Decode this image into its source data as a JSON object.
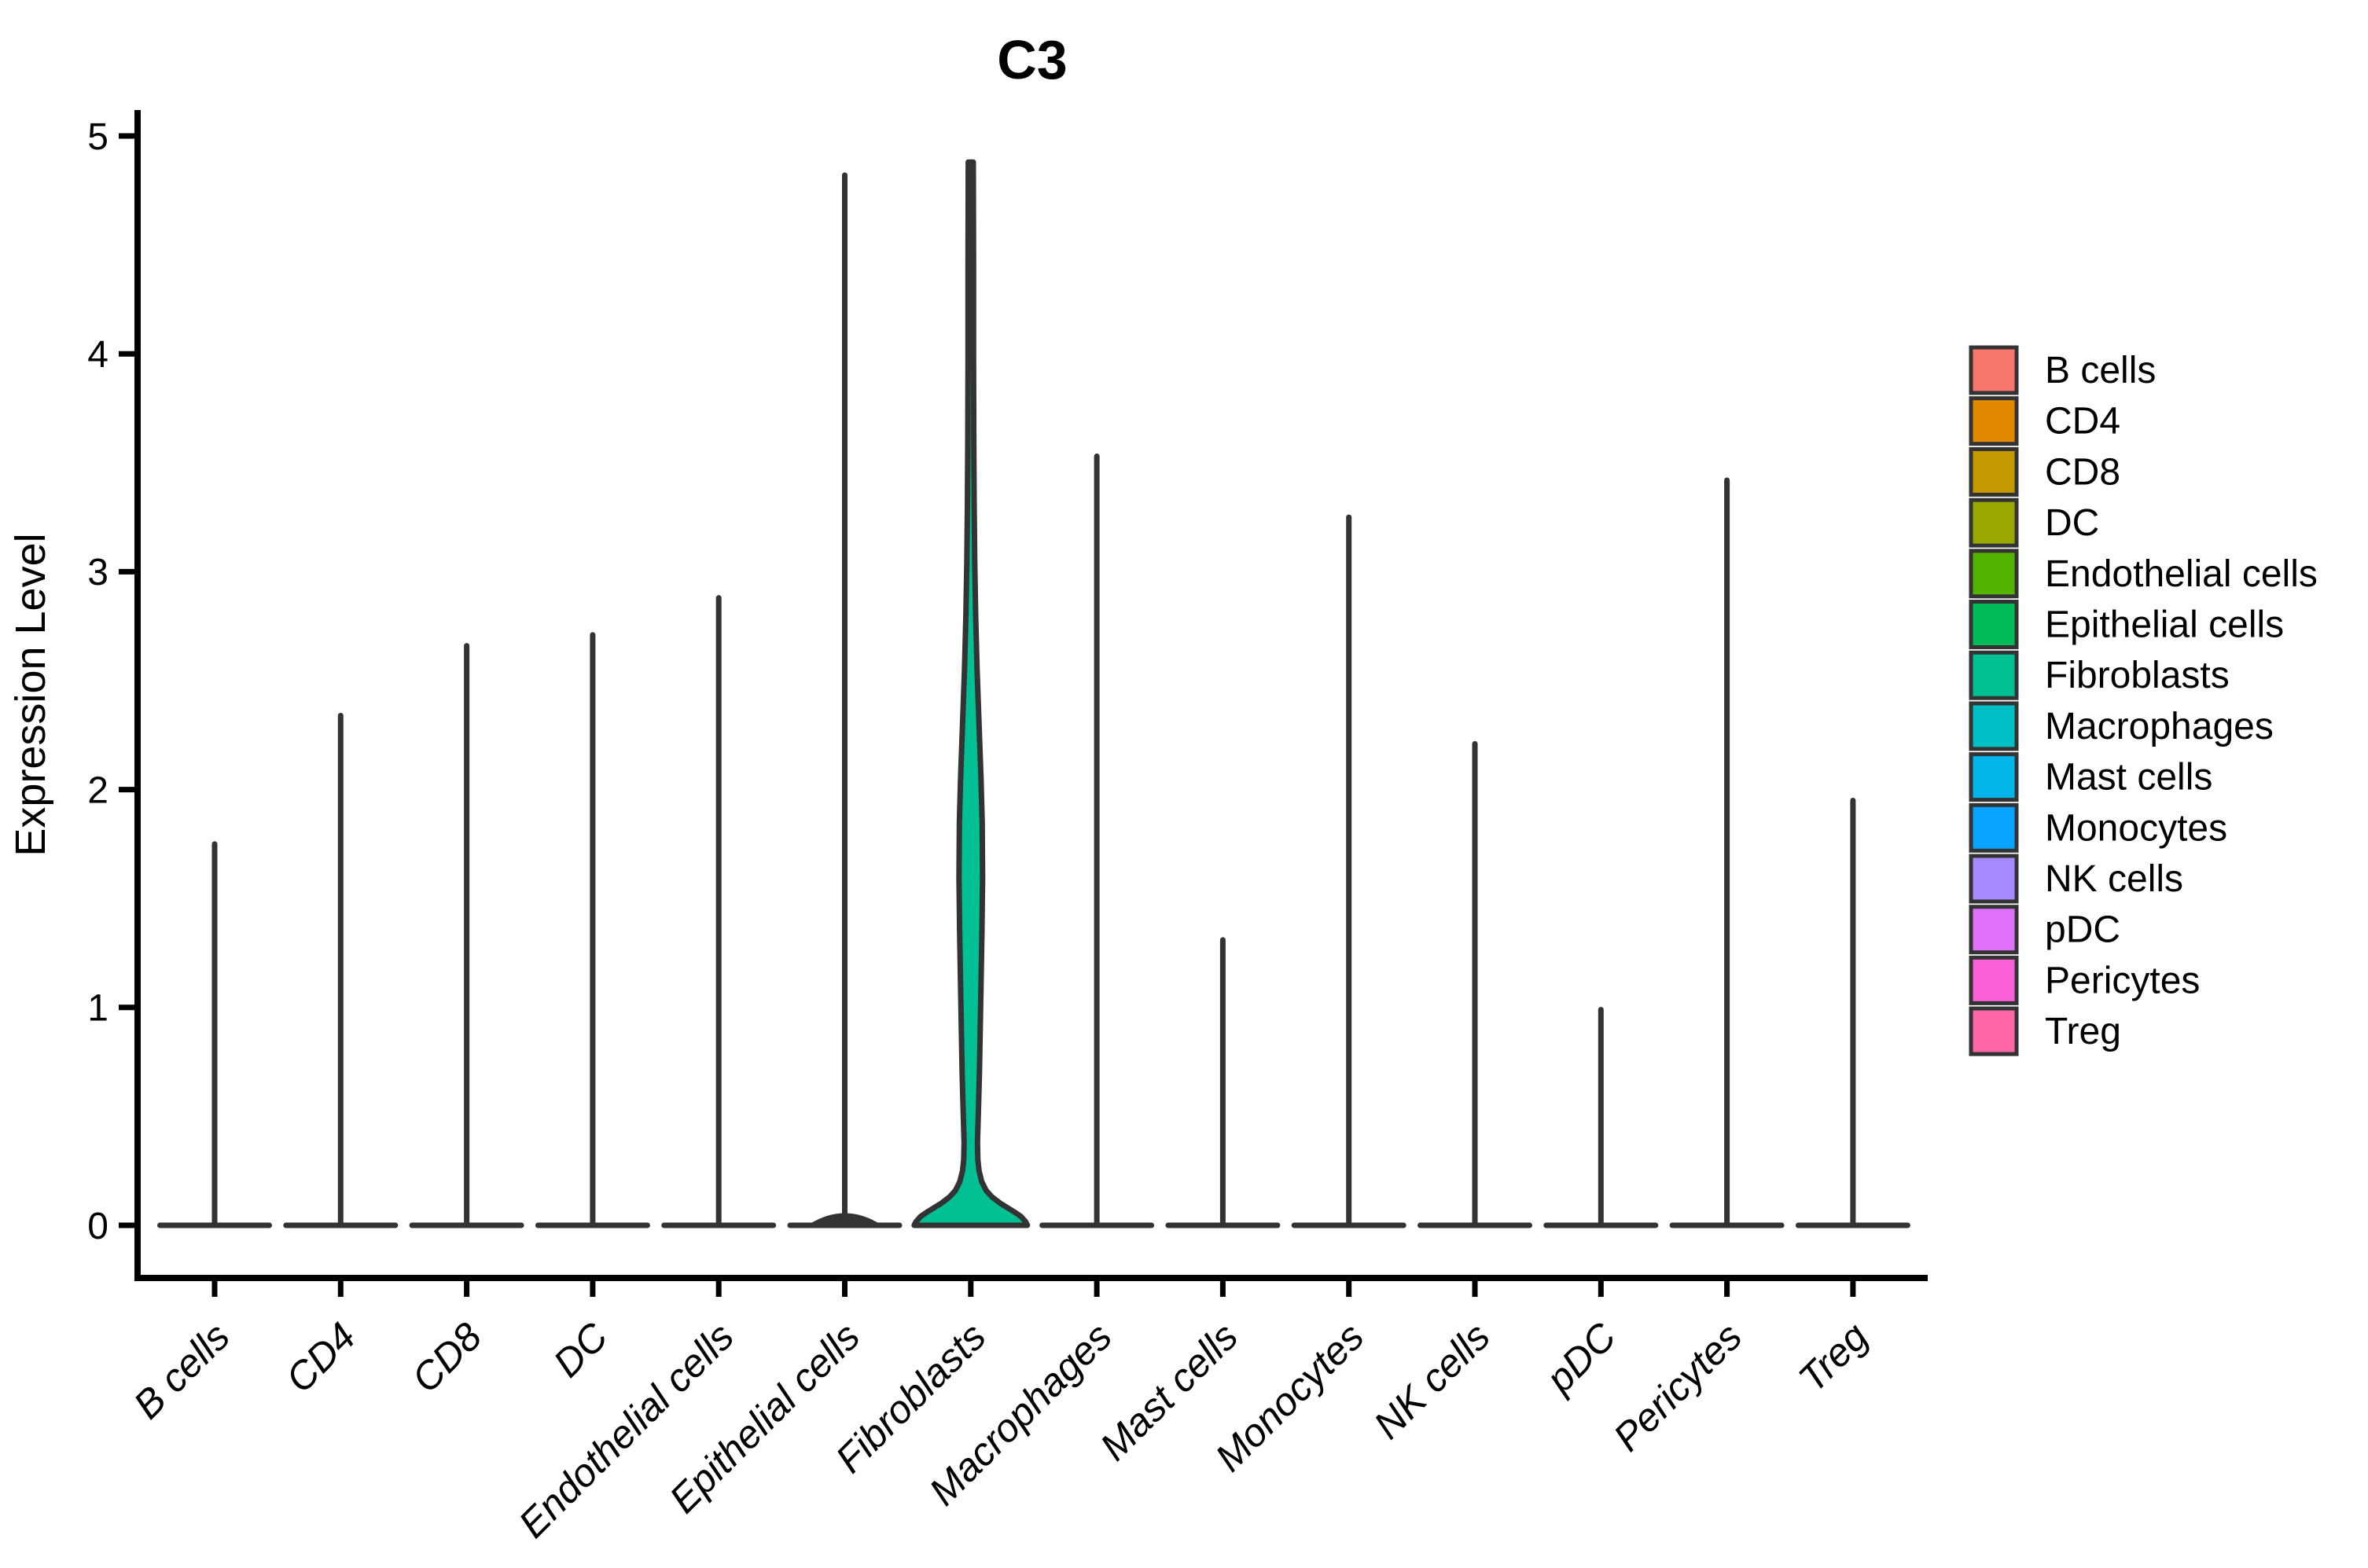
{
  "chart_data": {
    "type": "violin",
    "title": "C3",
    "xlabel": "",
    "ylabel": "Expression Level",
    "yticks": [
      0,
      1,
      2,
      3,
      4,
      5
    ],
    "ylim": [
      0,
      5.1
    ],
    "grid": false,
    "legend_position": "right",
    "axis_color": "#000000",
    "violin_outline_color": "#333333",
    "categories": [
      "B cells",
      "CD4",
      "CD8",
      "DC",
      "Endothelial cells",
      "Epithelial cells",
      "Fibroblasts",
      "Macrophages",
      "Mast cells",
      "Monocytes",
      "NK cells",
      "pDC",
      "Pericytes",
      "Treg"
    ],
    "series": [
      {
        "name": "B cells",
        "color": "#F8766D",
        "max_expression": 1.75,
        "zero_inflated": true
      },
      {
        "name": "CD4",
        "color": "#E38900",
        "max_expression": 2.34,
        "zero_inflated": true
      },
      {
        "name": "CD8",
        "color": "#C49A00",
        "max_expression": 2.66,
        "zero_inflated": true
      },
      {
        "name": "DC",
        "color": "#99A800",
        "max_expression": 2.71,
        "zero_inflated": true
      },
      {
        "name": "Endothelial cells",
        "color": "#53B400",
        "max_expression": 2.88,
        "zero_inflated": true
      },
      {
        "name": "Epithelial cells",
        "color": "#00BC56",
        "max_expression": 4.82,
        "zero_inflated": true,
        "base_bump": true
      },
      {
        "name": "Fibroblasts",
        "color": "#00C094",
        "max_expression": 4.88,
        "zero_inflated": false,
        "body_profile": [
          [
            0,
            72
          ],
          [
            0.015,
            70
          ],
          [
            0.04,
            64
          ],
          [
            0.06,
            56
          ],
          [
            0.08,
            47
          ],
          [
            0.1,
            38
          ],
          [
            0.13,
            27
          ],
          [
            0.16,
            19.5
          ],
          [
            0.2,
            14
          ],
          [
            0.25,
            10.5
          ],
          [
            0.3,
            9
          ],
          [
            0.38,
            8.5
          ],
          [
            0.5,
            9.5
          ],
          [
            0.7,
            11
          ],
          [
            0.9,
            12
          ],
          [
            1.1,
            13
          ],
          [
            1.35,
            14.2
          ],
          [
            1.6,
            15
          ],
          [
            1.85,
            14.5
          ],
          [
            2.05,
            13
          ],
          [
            2.3,
            10.5
          ],
          [
            2.55,
            8
          ],
          [
            2.8,
            6.2
          ],
          [
            3.05,
            5
          ],
          [
            3.3,
            4.3
          ],
          [
            3.6,
            3.8
          ],
          [
            4.0,
            3.5
          ],
          [
            4.4,
            3.5
          ],
          [
            4.88,
            3.2
          ]
        ]
      },
      {
        "name": "Macrophages",
        "color": "#00BFC4",
        "max_expression": 3.53,
        "zero_inflated": true
      },
      {
        "name": "Mast cells",
        "color": "#00B6EB",
        "max_expression": 1.31,
        "zero_inflated": true
      },
      {
        "name": "Monocytes",
        "color": "#06A4FF",
        "max_expression": 3.25,
        "zero_inflated": true
      },
      {
        "name": "NK cells",
        "color": "#A58AFF",
        "max_expression": 2.21,
        "zero_inflated": true
      },
      {
        "name": "pDC",
        "color": "#DF70F8",
        "max_expression": 0.99,
        "zero_inflated": true
      },
      {
        "name": "Pericytes",
        "color": "#FB61D7",
        "max_expression": 3.42,
        "zero_inflated": true
      },
      {
        "name": "Treg",
        "color": "#FF66A8",
        "max_expression": 1.95,
        "zero_inflated": true
      }
    ]
  }
}
